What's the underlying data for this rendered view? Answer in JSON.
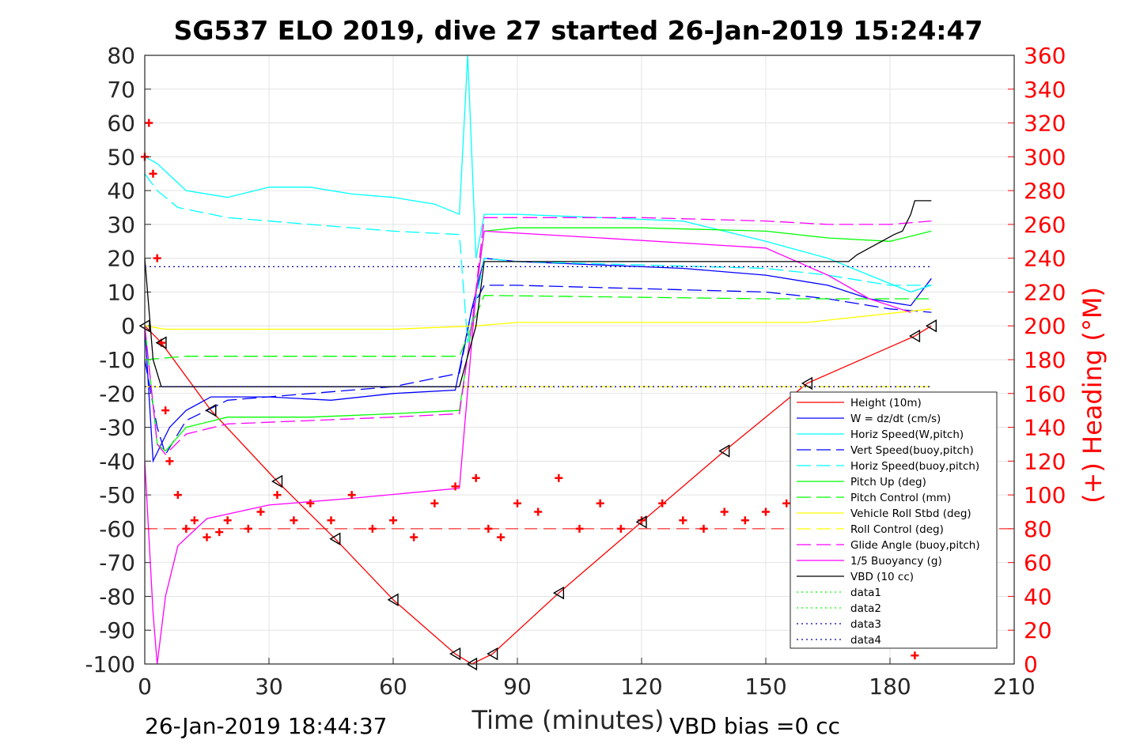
{
  "chart_data": {
    "type": "line",
    "title": "SG537 ELO 2019, dive 27 started 26-Jan-2019 15:24:47",
    "xlabel": "Time (minutes)",
    "ylabel_right": "(+) Heading (°M)",
    "xlim": [
      0,
      210
    ],
    "ylim": [
      -100,
      80
    ],
    "ylim_right": [
      0,
      360
    ],
    "x_ticks": [
      "0",
      "30",
      "60",
      "90",
      "120",
      "150",
      "180",
      "210"
    ],
    "y_ticks": [
      "-100",
      "-90",
      "-80",
      "-70",
      "-60",
      "-50",
      "-40",
      "-30",
      "-20",
      "-10",
      "0",
      "10",
      "20",
      "30",
      "40",
      "50",
      "60",
      "70",
      "80"
    ],
    "y_ticks_right": [
      "0",
      "20",
      "40",
      "60",
      "80",
      "100",
      "120",
      "140",
      "160",
      "180",
      "200",
      "220",
      "240",
      "260",
      "280",
      "300",
      "320",
      "340",
      "360"
    ],
    "grid": true,
    "legend_position": "bottom-right",
    "footer_left": "26-Jan-2019 18:44:37",
    "footer_right": "VBD bias =0 cc",
    "series": [
      {
        "name": "Height (10m)",
        "color": "#ff0000",
        "style": "solid",
        "marker": "triangle",
        "x": [
          0,
          4,
          16,
          32,
          46,
          60,
          75,
          79,
          84,
          100,
          120,
          140,
          160,
          186,
          190
        ],
        "y": [
          0,
          -5,
          -25,
          -46,
          -63,
          -81,
          -97,
          -100,
          -97,
          -79,
          -58,
          -37,
          -17,
          -3,
          0
        ]
      },
      {
        "name": "W = dz/dt (cm/s)",
        "color": "#0000ff",
        "style": "solid",
        "x": [
          0,
          2,
          4,
          6,
          10,
          16,
          30,
          45,
          60,
          75,
          79,
          82,
          90,
          110,
          130,
          150,
          165,
          175,
          185,
          190
        ],
        "y": [
          0,
          -40,
          -35,
          -30,
          -25,
          -21,
          -21,
          -22,
          -20,
          -19,
          5,
          20,
          19,
          18,
          17,
          15,
          12,
          8,
          6,
          14
        ]
      },
      {
        "name": "Horiz Speed(W,pitch)",
        "color": "#00ffff",
        "style": "solid",
        "x": [
          0,
          3,
          10,
          20,
          30,
          40,
          50,
          60,
          70,
          76,
          78,
          80,
          82,
          90,
          110,
          130,
          150,
          165,
          175,
          185,
          190
        ],
        "y": [
          50,
          48,
          40,
          38,
          41,
          41,
          39,
          38,
          36,
          33,
          80,
          20,
          33,
          33,
          32,
          31,
          25,
          20,
          15,
          10,
          12
        ]
      },
      {
        "name": "Vert Speed(buoy,pitch)",
        "color": "#0000ff",
        "style": "dashed",
        "x": [
          0,
          3,
          5,
          10,
          20,
          40,
          60,
          76,
          79,
          82,
          90,
          120,
          150,
          165,
          180,
          190
        ],
        "y": [
          -10,
          -30,
          -38,
          -28,
          -22,
          -20,
          -18,
          -14,
          5,
          12,
          12,
          11,
          10,
          8,
          5,
          4
        ]
      },
      {
        "name": "Horiz Speed(buoy,pitch)",
        "color": "#00ffff",
        "style": "dashed",
        "x": [
          0,
          3,
          8,
          20,
          40,
          60,
          76,
          78,
          82,
          90,
          120,
          150,
          165,
          180,
          190
        ],
        "y": [
          45,
          40,
          35,
          32,
          30,
          28,
          27,
          -5,
          20,
          19,
          18,
          17,
          15,
          12,
          12
        ]
      },
      {
        "name": "Pitch Up (deg)",
        "color": "#00ff00",
        "style": "solid",
        "x": [
          0,
          3,
          5,
          10,
          20,
          40,
          60,
          76,
          79,
          82,
          90,
          120,
          150,
          165,
          180,
          190
        ],
        "y": [
          0,
          -35,
          -37,
          -30,
          -27,
          -27,
          -26,
          -25,
          0,
          28,
          29,
          29,
          28,
          26,
          25,
          28
        ]
      },
      {
        "name": "Pitch Control (mm)",
        "color": "#00ff00",
        "style": "dashed",
        "x": [
          0,
          10,
          76,
          79,
          82,
          150,
          190
        ],
        "y": [
          -10,
          -9,
          -9,
          0,
          9,
          8,
          8
        ]
      },
      {
        "name": "Vehicle Roll Stbd (deg)",
        "color": "#ffff00",
        "style": "solid",
        "x": [
          0,
          5,
          10,
          30,
          60,
          80,
          90,
          120,
          150,
          160,
          190
        ],
        "y": [
          0,
          -1,
          -1,
          -1,
          -1,
          0,
          1,
          1,
          1,
          1,
          5
        ]
      },
      {
        "name": "Roll Control (deg)",
        "color": "#ffff00",
        "style": "dashed",
        "x": [
          0,
          190
        ],
        "y": [
          -18,
          -18
        ]
      },
      {
        "name": "Glide Angle (buoy,pitch)",
        "color": "#ff00ff",
        "style": "dashed",
        "x": [
          0,
          3,
          5,
          10,
          20,
          40,
          60,
          76,
          79,
          82,
          90,
          120,
          150,
          165,
          180,
          190
        ],
        "y": [
          0,
          -35,
          -38,
          -32,
          -29,
          -28,
          -27,
          -26,
          0,
          32,
          32,
          32,
          31,
          30,
          30,
          31
        ]
      },
      {
        "name": "1/5 Buoyancy (g)",
        "color": "#ff00ff",
        "style": "solid",
        "x": [
          0,
          2,
          3,
          5,
          8,
          15,
          30,
          50,
          76,
          80,
          82,
          110,
          150,
          165,
          175,
          185
        ],
        "y": [
          -40,
          -85,
          -100,
          -80,
          -65,
          -57,
          -53,
          -51,
          -48,
          10,
          28,
          26,
          23,
          15,
          8,
          4
        ]
      },
      {
        "name": "VBD (10 cc)",
        "color": "#000000",
        "style": "solid",
        "x": [
          0,
          2,
          4,
          76,
          80,
          82,
          170,
          172,
          175,
          178,
          181,
          183,
          185,
          186,
          190
        ],
        "y": [
          20,
          -10,
          -18,
          -18,
          0,
          19,
          19,
          21,
          23,
          25,
          27,
          28,
          33,
          37,
          37
        ]
      },
      {
        "name": "data1",
        "color": "#00ff00",
        "style": "dotted",
        "x": [],
        "y": []
      },
      {
        "name": "data2",
        "color": "#00ff00",
        "style": "dotted",
        "x": [],
        "y": []
      },
      {
        "name": "data3",
        "color": "#0000aa",
        "style": "dotted",
        "x": [
          0,
          190
        ],
        "y": [
          -18,
          -18
        ]
      },
      {
        "name": "data4",
        "color": "#0000aa",
        "style": "dotted",
        "x": [
          0,
          190
        ],
        "y": [
          17.5,
          17.5
        ]
      }
    ],
    "heading_series": {
      "name": "(+) Heading",
      "color": "#ff0000",
      "marker": "plus",
      "x": [
        0,
        1,
        2,
        3,
        4,
        5,
        6,
        8,
        10,
        12,
        15,
        18,
        20,
        25,
        28,
        32,
        36,
        40,
        45,
        50,
        55,
        60,
        65,
        70,
        75,
        80,
        83,
        86,
        90,
        95,
        100,
        105,
        110,
        115,
        120,
        125,
        130,
        135,
        140,
        145,
        150,
        155,
        160,
        186
      ],
      "y": [
        300,
        320,
        290,
        240,
        190,
        150,
        120,
        100,
        80,
        85,
        75,
        78,
        85,
        80,
        90,
        100,
        85,
        95,
        85,
        100,
        80,
        85,
        75,
        95,
        105,
        110,
        80,
        75,
        95,
        90,
        110,
        80,
        95,
        80,
        85,
        95,
        85,
        80,
        90,
        85,
        90,
        95,
        95,
        5
      ]
    },
    "heading_reference": {
      "value": 80,
      "color": "#ff0000",
      "style": "dashed"
    }
  }
}
